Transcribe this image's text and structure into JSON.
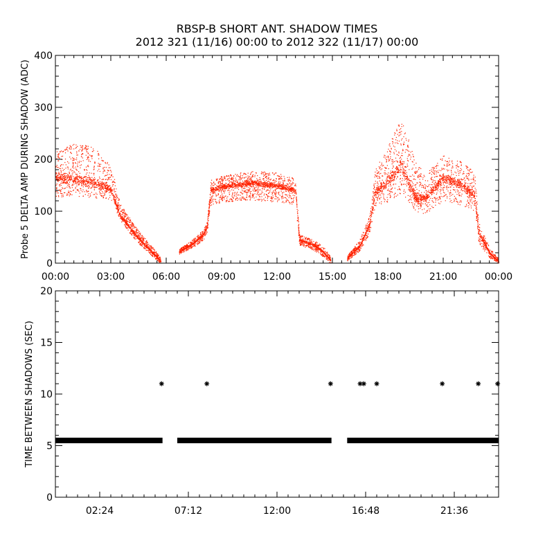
{
  "title": {
    "line1": "RBSP-B SHORT ANT. SHADOW TIMES",
    "line2": "2012 321 (11/16) 00:00 to 2012 322 (11/17) 00:00"
  },
  "colors": {
    "shadow_amp": "#ff2200",
    "interval": "#000000",
    "axes": "#000000",
    "background": "#ffffff"
  },
  "chart_data": [
    {
      "type": "scatter",
      "panel": "top",
      "ylabel": "Probe 5 DELTA AMP DURING SHADOW (ADC)",
      "xlabel": "",
      "x_unit": "hours since 00:00",
      "xlim": [
        0,
        24
      ],
      "ylim": [
        0,
        400
      ],
      "x_ticks": [
        0,
        3,
        6,
        9,
        12,
        15,
        18,
        21,
        24
      ],
      "x_tick_labels": [
        "00:00",
        "03:00",
        "06:00",
        "09:00",
        "12:00",
        "15:00",
        "18:00",
        "21:00",
        "00:00"
      ],
      "y_ticks": [
        0,
        100,
        200,
        300,
        400
      ],
      "y_tick_labels": [
        "0",
        "100",
        "200",
        "300",
        "400"
      ],
      "grid": false,
      "legend": "none",
      "series": [
        {
          "marker": "dot",
          "color": "#ff2200",
          "envelope": [
            {
              "x": 0.0,
              "low": 128,
              "mid": 165,
              "high": 215
            },
            {
              "x": 1.0,
              "low": 128,
              "mid": 162,
              "high": 232
            },
            {
              "x": 2.0,
              "low": 127,
              "mid": 155,
              "high": 225
            },
            {
              "x": 3.0,
              "low": 123,
              "mid": 142,
              "high": 192
            },
            {
              "x": 3.5,
              "low": 80,
              "mid": 92,
              "high": 115
            },
            {
              "x": 4.0,
              "low": 58,
              "mid": 70,
              "high": 88
            },
            {
              "x": 4.5,
              "low": 38,
              "mid": 48,
              "high": 62
            },
            {
              "x": 5.0,
              "low": 22,
              "mid": 30,
              "high": 42
            },
            {
              "x": 5.5,
              "low": 5,
              "mid": 12,
              "high": 20
            },
            {
              "x": 5.7,
              "low": 0,
              "mid": 4,
              "high": 10
            }
          ]
        },
        {
          "marker": "dot",
          "color": "#ff2200",
          "envelope": [
            {
              "x": 6.7,
              "low": 18,
              "mid": 22,
              "high": 28
            },
            {
              "x": 7.5,
              "low": 32,
              "mid": 40,
              "high": 48
            },
            {
              "x": 8.0,
              "low": 45,
              "mid": 55,
              "high": 65
            },
            {
              "x": 8.2,
              "low": 60,
              "mid": 70,
              "high": 80
            },
            {
              "x": 8.4,
              "low": 110,
              "mid": 140,
              "high": 160
            },
            {
              "x": 9.0,
              "low": 118,
              "mid": 148,
              "high": 168
            },
            {
              "x": 10.5,
              "low": 122,
              "mid": 155,
              "high": 178
            },
            {
              "x": 12.0,
              "low": 118,
              "mid": 150,
              "high": 176
            },
            {
              "x": 13.0,
              "low": 112,
              "mid": 140,
              "high": 162
            },
            {
              "x": 13.2,
              "low": 35,
              "mid": 45,
              "high": 55
            },
            {
              "x": 14.0,
              "low": 25,
              "mid": 35,
              "high": 45
            },
            {
              "x": 14.5,
              "low": 12,
              "mid": 22,
              "high": 32
            },
            {
              "x": 14.9,
              "low": 0,
              "mid": 5,
              "high": 12
            }
          ]
        },
        {
          "marker": "dot",
          "color": "#ff2200",
          "envelope": [
            {
              "x": 15.8,
              "low": 5,
              "mid": 10,
              "high": 15
            },
            {
              "x": 16.5,
              "low": 25,
              "mid": 35,
              "high": 48
            },
            {
              "x": 17.0,
              "low": 58,
              "mid": 75,
              "high": 92
            },
            {
              "x": 17.3,
              "low": 110,
              "mid": 135,
              "high": 180
            },
            {
              "x": 18.0,
              "low": 118,
              "mid": 158,
              "high": 225
            },
            {
              "x": 18.7,
              "low": 135,
              "mid": 190,
              "high": 280
            },
            {
              "x": 19.5,
              "low": 100,
              "mid": 125,
              "high": 200
            },
            {
              "x": 20.0,
              "low": 95,
              "mid": 125,
              "high": 170
            },
            {
              "x": 21.0,
              "low": 120,
              "mid": 165,
              "high": 210
            },
            {
              "x": 22.0,
              "low": 110,
              "mid": 150,
              "high": 195
            },
            {
              "x": 22.7,
              "low": 100,
              "mid": 130,
              "high": 175
            },
            {
              "x": 22.9,
              "low": 40,
              "mid": 60,
              "high": 80
            },
            {
              "x": 23.5,
              "low": 10,
              "mid": 20,
              "high": 30
            },
            {
              "x": 24.0,
              "low": 0,
              "mid": 3,
              "high": 8
            }
          ]
        }
      ]
    },
    {
      "type": "scatter",
      "panel": "bottom",
      "ylabel": "TIME BETWEEN SHADOWS (SEC)",
      "xlabel": "",
      "x_unit": "hours since 00:00",
      "xlim": [
        0,
        24
      ],
      "ylim": [
        0,
        20
      ],
      "x_ticks": [
        2.4,
        7.2,
        12.0,
        16.8,
        21.6
      ],
      "x_tick_labels": [
        "02:24",
        "07:12",
        "12:00",
        "16:48",
        "21:36"
      ],
      "y_ticks": [
        0,
        5,
        10,
        15,
        20
      ],
      "y_tick_labels": [
        "0",
        "5",
        "10",
        "15",
        "20"
      ],
      "grid": false,
      "legend": "none",
      "series": [
        {
          "marker": "asterisk",
          "color": "#000000",
          "bands": [
            {
              "x_start": 0.0,
              "x_end": 5.8,
              "y": 5.5
            },
            {
              "x_start": 6.6,
              "x_end": 14.95,
              "y": 5.5
            },
            {
              "x_start": 15.8,
              "x_end": 24.0,
              "y": 5.5
            }
          ],
          "points": [
            {
              "x": 5.75,
              "y": 11.0
            },
            {
              "x": 8.2,
              "y": 11.0
            },
            {
              "x": 14.9,
              "y": 11.0
            },
            {
              "x": 16.5,
              "y": 11.0
            },
            {
              "x": 16.7,
              "y": 11.0
            },
            {
              "x": 17.4,
              "y": 11.0
            },
            {
              "x": 20.95,
              "y": 11.0
            },
            {
              "x": 22.9,
              "y": 11.0
            },
            {
              "x": 23.95,
              "y": 11.0
            }
          ]
        }
      ]
    }
  ]
}
